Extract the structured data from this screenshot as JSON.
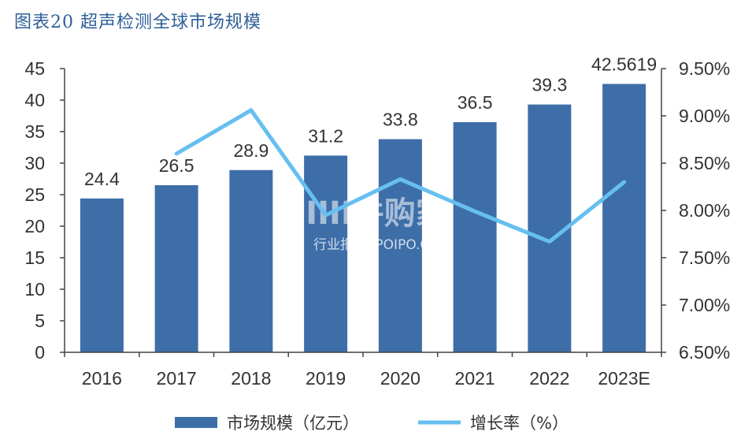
{
  "figure_title": "图表20 超声检测全球市场规模",
  "watermark": {
    "brand": "IIII并购家",
    "sub": "行业报告 IPOIPO.CN"
  },
  "colors": {
    "bar": "#3d6ea8",
    "line": "#66bff0",
    "title": "#2e5f98",
    "axis": "#333333"
  },
  "chart_data": {
    "type": "bar",
    "categories": [
      "2016",
      "2017",
      "2018",
      "2019",
      "2020",
      "2021",
      "2022",
      "2023E"
    ],
    "series": [
      {
        "name": "市场规模（亿元）",
        "type": "bar",
        "axis": "left",
        "values": [
          24.4,
          26.5,
          28.9,
          31.2,
          33.8,
          36.5,
          39.3,
          42.5619
        ],
        "labels": [
          "24.4",
          "26.5",
          "28.9",
          "31.2",
          "33.8",
          "36.5",
          "39.3",
          "42.5619"
        ]
      },
      {
        "name": "增长率（%）",
        "type": "line",
        "axis": "right",
        "values": [
          null,
          8.6,
          9.06,
          7.95,
          8.33,
          7.99,
          7.67,
          8.3
        ]
      }
    ],
    "y_left": {
      "ylim": [
        0,
        45
      ],
      "ticks": [
        "0",
        "5",
        "10",
        "15",
        "20",
        "25",
        "30",
        "35",
        "40",
        "45"
      ]
    },
    "y_right": {
      "ylim": [
        6.5,
        9.5
      ],
      "ticks": [
        "6.50%",
        "7.00%",
        "7.50%",
        "8.00%",
        "8.50%",
        "9.00%",
        "9.50%"
      ]
    },
    "legend": "bottom",
    "grid": false
  }
}
